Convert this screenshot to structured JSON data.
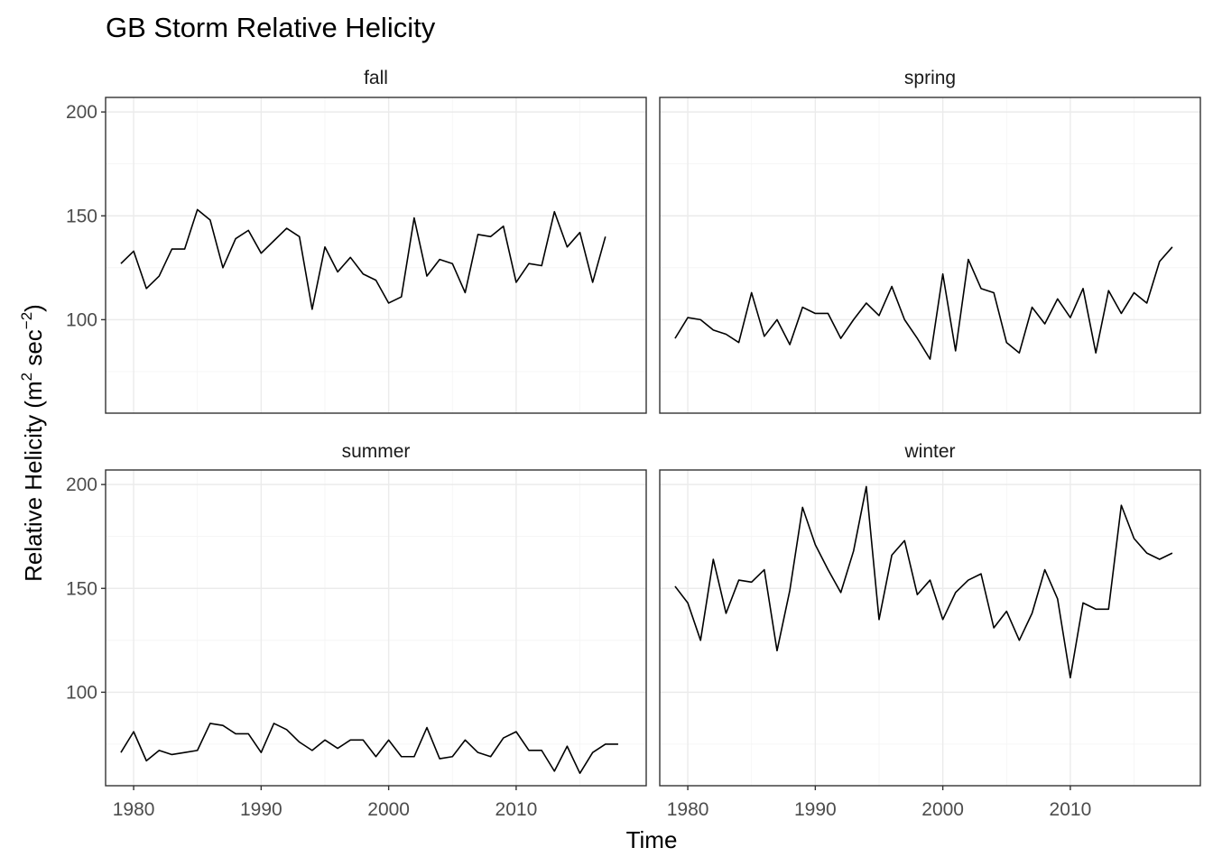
{
  "chart_data": {
    "type": "line",
    "title": "GB Storm Relative Helicity",
    "xlabel": "Time",
    "ylabel": "Relative Helicity (m2 sec−2)",
    "ylabel_parts": {
      "main": "Relative Helicity (m",
      "sup1": "2",
      "mid": " sec",
      "sup2": "−2",
      "end": ")"
    },
    "xlim": [
      1977.8,
      2020.2
    ],
    "ylim": [
      55,
      207
    ],
    "x_ticks": [
      1980,
      1990,
      2000,
      2010
    ],
    "x_tick_labels": [
      "1980",
      "1990",
      "2000",
      "2010"
    ],
    "y_ticks": [
      100,
      150,
      200
    ],
    "y_tick_labels": [
      "100",
      "150",
      "200"
    ],
    "grid": true,
    "x": [
      1979,
      1980,
      1981,
      1982,
      1983,
      1984,
      1985,
      1986,
      1987,
      1988,
      1989,
      1990,
      1991,
      1992,
      1993,
      1994,
      1995,
      1996,
      1997,
      1998,
      1999,
      2000,
      2001,
      2002,
      2003,
      2004,
      2005,
      2006,
      2007,
      2008,
      2009,
      2010,
      2011,
      2012,
      2013,
      2014,
      2015,
      2016,
      2017,
      2018
    ],
    "facets": [
      {
        "name": "fall",
        "label": "fall",
        "x": [
          1979,
          1980,
          1981,
          1982,
          1983,
          1984,
          1985,
          1986,
          1987,
          1988,
          1989,
          1990,
          1991,
          1992,
          1993,
          1994,
          1995,
          1996,
          1997,
          1998,
          1999,
          2000,
          2001,
          2002,
          2003,
          2004,
          2005,
          2006,
          2007,
          2008,
          2009,
          2010,
          2011,
          2012,
          2013,
          2014,
          2015,
          2016,
          2017
        ],
        "values": [
          127,
          133,
          115,
          121,
          134,
          134,
          153,
          148,
          125,
          139,
          143,
          132,
          138,
          144,
          140,
          105,
          135,
          123,
          130,
          122,
          119,
          108,
          111,
          149,
          121,
          129,
          127,
          113,
          141,
          140,
          145,
          118,
          127,
          126,
          152,
          135,
          142,
          118,
          140
        ]
      },
      {
        "name": "spring",
        "label": "spring",
        "values": [
          91,
          101,
          100,
          95,
          93,
          89,
          113,
          92,
          100,
          88,
          106,
          103,
          103,
          91,
          100,
          108,
          102,
          116,
          100,
          91,
          81,
          122,
          85,
          129,
          115,
          113,
          89,
          84,
          106,
          98,
          110,
          101,
          115,
          84,
          114,
          103,
          113,
          108,
          128,
          135
        ]
      },
      {
        "name": "summer",
        "label": "summer",
        "values": [
          71,
          81,
          67,
          72,
          70,
          71,
          72,
          85,
          84,
          80,
          80,
          71,
          85,
          82,
          76,
          72,
          77,
          73,
          77,
          77,
          69,
          77,
          69,
          69,
          83,
          68,
          69,
          77,
          71,
          69,
          78,
          81,
          72,
          72,
          62,
          74,
          61,
          71,
          75,
          75
        ]
      },
      {
        "name": "winter",
        "label": "winter",
        "values": [
          151,
          143,
          125,
          164,
          138,
          154,
          153,
          159,
          120,
          149,
          189,
          171,
          159,
          148,
          168,
          199,
          135,
          166,
          173,
          147,
          154,
          135,
          148,
          154,
          157,
          131,
          139,
          125,
          138,
          159,
          145,
          107,
          143,
          140,
          140,
          190,
          174,
          167,
          164,
          167
        ]
      }
    ]
  }
}
